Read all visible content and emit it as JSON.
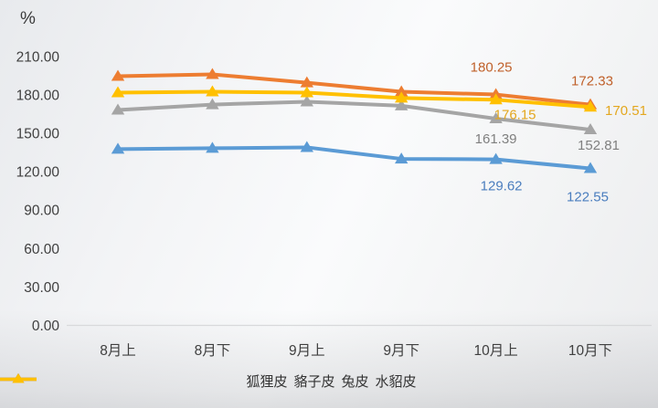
{
  "chart_data": {
    "type": "line",
    "title": "",
    "unit": "%",
    "categories": [
      "8月上",
      "8月下",
      "9月上",
      "9月下",
      "10月上",
      "10月下"
    ],
    "y_ticks": [
      "0.00",
      "30.00",
      "60.00",
      "90.00",
      "120.00",
      "150.00",
      "180.00",
      "210.00"
    ],
    "y_tick_values": [
      0,
      30,
      60,
      90,
      120,
      150,
      180,
      210
    ],
    "ylim": [
      0,
      210
    ],
    "grid": false,
    "legend_position": "bottom",
    "axis_line_color": "#d8d9db",
    "tick_label_color": "#3f3f3f",
    "series": [
      {
        "name": "狐狸皮",
        "color": "#5B9BD5",
        "label_color": "#4A7DBE",
        "values": [
          137.6,
          138.3,
          139.0,
          130.0,
          129.62,
          122.55
        ],
        "data_labels": [
          null,
          null,
          null,
          null,
          "129.62",
          "122.55"
        ]
      },
      {
        "name": "貉子皮",
        "color": "#ED7D31",
        "label_color": "#C0612B",
        "values": [
          194.5,
          196.0,
          189.5,
          182.4,
          180.25,
          172.33
        ],
        "data_labels": [
          null,
          null,
          null,
          null,
          "180.25",
          "172.33"
        ]
      },
      {
        "name": "兔皮",
        "color": "#A5A5A5",
        "label_color": "#7F7F7F",
        "values": [
          168.2,
          172.4,
          174.6,
          171.5,
          161.39,
          152.81
        ],
        "data_labels": [
          null,
          null,
          null,
          null,
          "161.39",
          "152.81"
        ]
      },
      {
        "name": "水貂皮",
        "color": "#FFC000",
        "label_color": "#E3A71E",
        "values": [
          181.7,
          182.4,
          181.7,
          177.5,
          176.15,
          170.51
        ],
        "data_labels": [
          null,
          null,
          null,
          null,
          "176.15",
          "170.51"
        ]
      }
    ]
  }
}
